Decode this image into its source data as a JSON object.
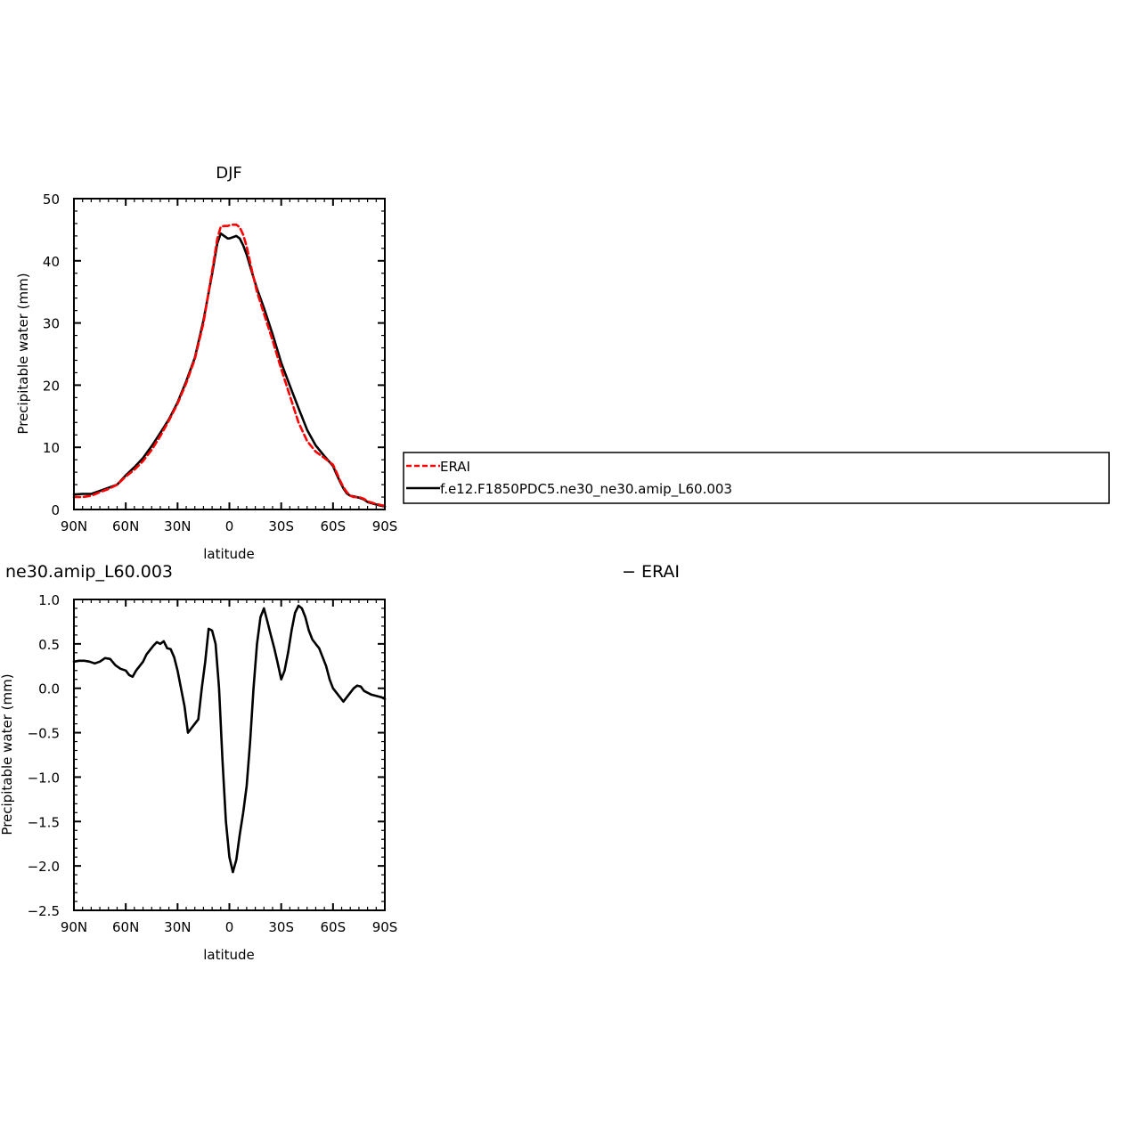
{
  "chart_data": [
    {
      "type": "line",
      "title": "DJF",
      "xlabel": "latitude",
      "ylabel": "Precipitable water (mm)",
      "xlim": [
        90,
        -90
      ],
      "ylim": [
        0,
        50
      ],
      "xticks": [
        90,
        60,
        30,
        0,
        -30,
        -60,
        -90
      ],
      "xtick_labels": [
        "90N",
        "60N",
        "30N",
        "0",
        "30S",
        "60S",
        "90S"
      ],
      "yticks": [
        0,
        10,
        20,
        30,
        40,
        50
      ],
      "ytick_labels": [
        "0",
        "10",
        "20",
        "30",
        "40",
        "50"
      ],
      "grid": false,
      "legend_position": "right, outside the plot",
      "series": [
        {
          "name": "ERAI",
          "color": "#ff0000",
          "dash": "dashed",
          "x": [
            90,
            85,
            80,
            75,
            70,
            65,
            60,
            55,
            50,
            45,
            40,
            35,
            30,
            25,
            20,
            15,
            10,
            7,
            5,
            3,
            1,
            0,
            -2,
            -4,
            -6,
            -8,
            -10,
            -13,
            -16,
            -20,
            -25,
            -30,
            -35,
            -40,
            -45,
            -50,
            -55,
            -60,
            -62,
            -64,
            -66,
            -68,
            -70,
            -72,
            -75,
            -78,
            -80,
            -85,
            -88,
            -90
          ],
          "y": [
            2.0,
            2.0,
            2.2,
            2.8,
            3.3,
            4.0,
            5.3,
            6.4,
            7.8,
            9.6,
            11.8,
            14.3,
            17.0,
            20.3,
            24.2,
            30.0,
            38.3,
            43.5,
            45.5,
            45.6,
            45.6,
            45.7,
            45.8,
            45.8,
            45.4,
            44.2,
            42.3,
            38.5,
            35.0,
            31.5,
            27.2,
            22.6,
            18.3,
            14.0,
            11.0,
            9.3,
            8.3,
            7.2,
            6.0,
            4.7,
            3.6,
            2.8,
            2.2,
            2.0,
            2.0,
            1.7,
            1.3,
            0.9,
            0.7,
            0.6
          ]
        },
        {
          "name": "f.e12.F1850PDC5.ne30_ne30.amip_L60.003",
          "color": "#000000",
          "dash": "solid",
          "x": [
            90,
            85,
            80,
            75,
            70,
            65,
            60,
            55,
            50,
            45,
            40,
            35,
            30,
            25,
            20,
            15,
            10,
            7,
            5,
            3,
            1,
            0,
            -2,
            -4,
            -6,
            -8,
            -10,
            -13,
            -16,
            -20,
            -25,
            -30,
            -35,
            -40,
            -45,
            -50,
            -55,
            -60,
            -62,
            -64,
            -66,
            -68,
            -70,
            -72,
            -75,
            -78,
            -80,
            -85,
            -88,
            -90
          ],
          "y": [
            2.4,
            2.5,
            2.5,
            3.0,
            3.5,
            4.0,
            5.5,
            6.8,
            8.3,
            10.2,
            12.3,
            14.5,
            17.2,
            20.6,
            24.4,
            30.4,
            37.9,
            42.8,
            44.4,
            44.0,
            43.6,
            43.6,
            43.8,
            44.0,
            43.6,
            42.5,
            41.0,
            38.2,
            35.5,
            32.4,
            28.2,
            23.6,
            19.9,
            16.3,
            12.8,
            10.3,
            8.6,
            7.0,
            5.7,
            4.5,
            3.4,
            2.6,
            2.2,
            2.1,
            1.9,
            1.6,
            1.2,
            0.8,
            0.6,
            0.5
          ]
        }
      ]
    },
    {
      "type": "line",
      "title": "ne30.amip_L60.003",
      "title_right": "− ERAI",
      "xlabel": "latitude",
      "ylabel": "Precipitable water (mm)",
      "xlim": [
        90,
        -90
      ],
      "ylim": [
        -2.5,
        1.0
      ],
      "xticks": [
        90,
        60,
        30,
        0,
        -30,
        -60,
        -90
      ],
      "xtick_labels": [
        "90N",
        "60N",
        "30N",
        "0",
        "30S",
        "60S",
        "90S"
      ],
      "yticks": [
        -2.5,
        -2.0,
        -1.5,
        -1.0,
        -0.5,
        0.0,
        0.5,
        1.0
      ],
      "ytick_labels": [
        "−2.5",
        "−2.0",
        "−1.5",
        "−1.0",
        "−0.5",
        "0.0",
        "0.5",
        "1.0"
      ],
      "grid": false,
      "series": [
        {
          "color": "#000000",
          "dash": "solid",
          "x": [
            90,
            87,
            84,
            81,
            78,
            75,
            72,
            69,
            66,
            63,
            60,
            58,
            56,
            54,
            52,
            50,
            48,
            46,
            44,
            42,
            40,
            38,
            36,
            34,
            32,
            30,
            28,
            26,
            24,
            22,
            20,
            18,
            16,
            14,
            12,
            10,
            8,
            6,
            4,
            2,
            0,
            -2,
            -4,
            -6,
            -8,
            -10,
            -12,
            -14,
            -16,
            -18,
            -20,
            -22,
            -24,
            -26,
            -28,
            -30,
            -32,
            -34,
            -36,
            -38,
            -40,
            -42,
            -44,
            -46,
            -48,
            -50,
            -52,
            -54,
            -56,
            -58,
            -60,
            -62,
            -64,
            -66,
            -68,
            -70,
            -72,
            -74,
            -76,
            -78,
            -80,
            -82,
            -84,
            -86,
            -88,
            -90
          ],
          "y": [
            0.3,
            0.31,
            0.31,
            0.3,
            0.28,
            0.3,
            0.34,
            0.33,
            0.26,
            0.22,
            0.2,
            0.15,
            0.13,
            0.2,
            0.25,
            0.3,
            0.38,
            0.43,
            0.48,
            0.52,
            0.5,
            0.53,
            0.45,
            0.44,
            0.35,
            0.2,
            0.0,
            -0.2,
            -0.5,
            -0.45,
            -0.4,
            -0.35,
            0.0,
            0.3,
            0.67,
            0.65,
            0.5,
            0.0,
            -0.8,
            -1.5,
            -1.9,
            -2.07,
            -1.93,
            -1.65,
            -1.4,
            -1.1,
            -0.6,
            0.0,
            0.5,
            0.8,
            0.9,
            0.75,
            0.6,
            0.45,
            0.28,
            0.1,
            0.2,
            0.4,
            0.65,
            0.85,
            0.93,
            0.9,
            0.8,
            0.65,
            0.55,
            0.5,
            0.45,
            0.35,
            0.25,
            0.1,
            0.0,
            -0.05,
            -0.1,
            -0.15,
            -0.1,
            -0.05,
            0.0,
            0.03,
            0.02,
            -0.03,
            -0.05,
            -0.07,
            -0.08,
            -0.09,
            -0.1,
            -0.12
          ]
        }
      ]
    }
  ]
}
